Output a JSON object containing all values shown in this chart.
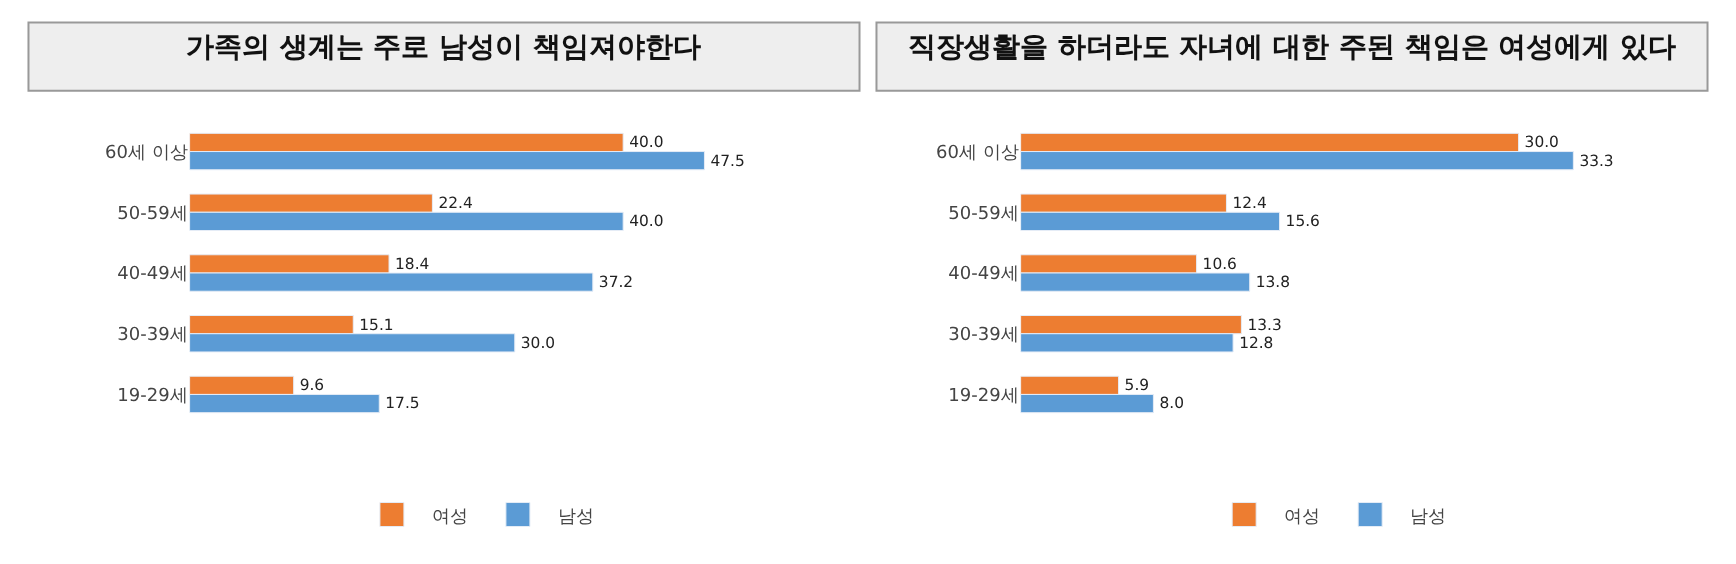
{
  "chart_data": [
    {
      "type": "bar",
      "orientation": "horizontal",
      "title": "가족의 생계는 주로 남성이 책임져야한다",
      "categories": [
        "60세 이상",
        "50-59세",
        "40-49세",
        "30-39세",
        "19-29세"
      ],
      "series": [
        {
          "name": "여성",
          "color": "#ed7d31",
          "values": [
            40.0,
            22.4,
            18.4,
            15.1,
            9.6
          ],
          "value_labels": [
            "40.0",
            "22.4",
            "18.4",
            "15.1",
            "9.6"
          ]
        },
        {
          "name": "남성",
          "color": "#5b9bd5",
          "values": [
            47.5,
            40.0,
            37.2,
            30.0,
            17.5
          ],
          "value_labels": [
            "47.5",
            "40.0",
            "37.2",
            "30.0",
            "17.5"
          ]
        }
      ],
      "legend": "bottom"
    },
    {
      "type": "bar",
      "orientation": "horizontal",
      "title": "직장생활을 하더라도 자녀에 대한 주된 책임은 여성에게 있다",
      "categories": [
        "60세 이상",
        "50-59세",
        "40-49세",
        "30-39세",
        "19-29세"
      ],
      "series": [
        {
          "name": "여성",
          "color": "#ed7d31",
          "values": [
            30.0,
            12.4,
            10.6,
            13.3,
            5.9
          ],
          "value_labels": [
            "30.0",
            "12.4",
            "10.6",
            "13.3",
            "5.9"
          ]
        },
        {
          "name": "남성",
          "color": "#5b9bd5",
          "values": [
            33.3,
            15.6,
            13.8,
            12.8,
            8.0
          ],
          "value_labels": [
            "33.3",
            "15.6",
            "13.8",
            "12.8",
            "8.0"
          ]
        }
      ],
      "legend": "bottom"
    }
  ]
}
